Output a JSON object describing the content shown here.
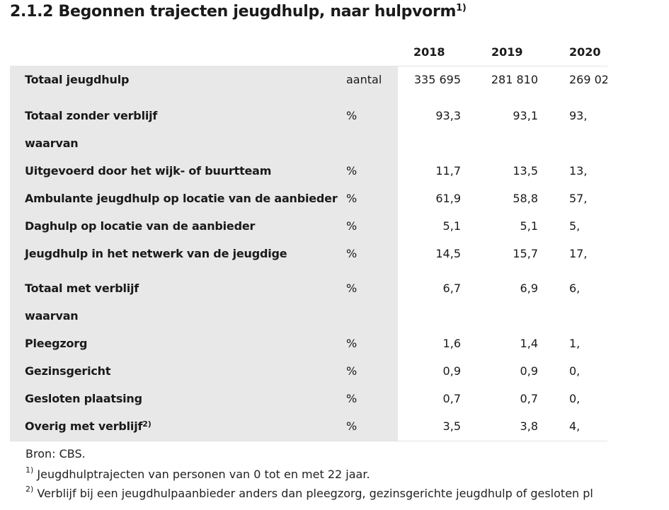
{
  "title": {
    "text": "2.1.2 Begonnen trajecten jeugdhulp, naar hulpvorm",
    "footnote_mark": "1)"
  },
  "table": {
    "years": [
      "2018",
      "2019",
      "2020"
    ],
    "rows": [
      {
        "label": "Totaal jeugdhulp",
        "unit": "aantal",
        "v": [
          "335 695",
          "281 810",
          "269 02"
        ]
      },
      {
        "label": "Totaal zonder verblijf",
        "unit": "%",
        "v": [
          "93,3",
          "93,1",
          "93,"
        ]
      },
      {
        "label": "waarvan",
        "unit": "",
        "v": [
          "",
          "",
          ""
        ]
      },
      {
        "label": "Uitgevoerd door het wijk- of buurtteam",
        "unit": "%",
        "v": [
          "11,7",
          "13,5",
          "13,"
        ]
      },
      {
        "label": "Ambulante jeugdhulp op locatie van de aanbieder",
        "unit": "%",
        "v": [
          "61,9",
          "58,8",
          "57,"
        ]
      },
      {
        "label": "Daghulp op locatie van de aanbieder",
        "unit": "%",
        "v": [
          "5,1",
          "5,1",
          "5,"
        ]
      },
      {
        "label": "Jeugdhulp in het netwerk van de jeugdige",
        "unit": "%",
        "v": [
          "14,5",
          "15,7",
          "17,"
        ]
      },
      {
        "label": "Totaal met verblijf",
        "unit": "%",
        "v": [
          "6,7",
          "6,9",
          "6,"
        ]
      },
      {
        "label": "waarvan",
        "unit": "",
        "v": [
          "",
          "",
          ""
        ]
      },
      {
        "label": "Pleegzorg",
        "unit": "%",
        "v": [
          "1,6",
          "1,4",
          "1,"
        ]
      },
      {
        "label": "Gezinsgericht",
        "unit": "%",
        "v": [
          "0,9",
          "0,9",
          "0,"
        ]
      },
      {
        "label": "Gesloten plaatsing",
        "unit": "%",
        "v": [
          "0,7",
          "0,7",
          "0,"
        ]
      },
      {
        "label": "Overig met verblijf",
        "label_mark": "2)",
        "unit": "%",
        "v": [
          "3,5",
          "3,8",
          "4,"
        ]
      }
    ]
  },
  "footer": {
    "source": "Bron: CBS.",
    "note1_mark": "1)",
    "note1": " Jeugdhulptrajecten van personen van 0 tot en met 22 jaar.",
    "note2_mark": "2)",
    "note2": " Verblijf bij een jeugdhulpaanbieder anders dan pleegzorg, gezinsgerichte jeugdhulp of gesloten pl"
  }
}
